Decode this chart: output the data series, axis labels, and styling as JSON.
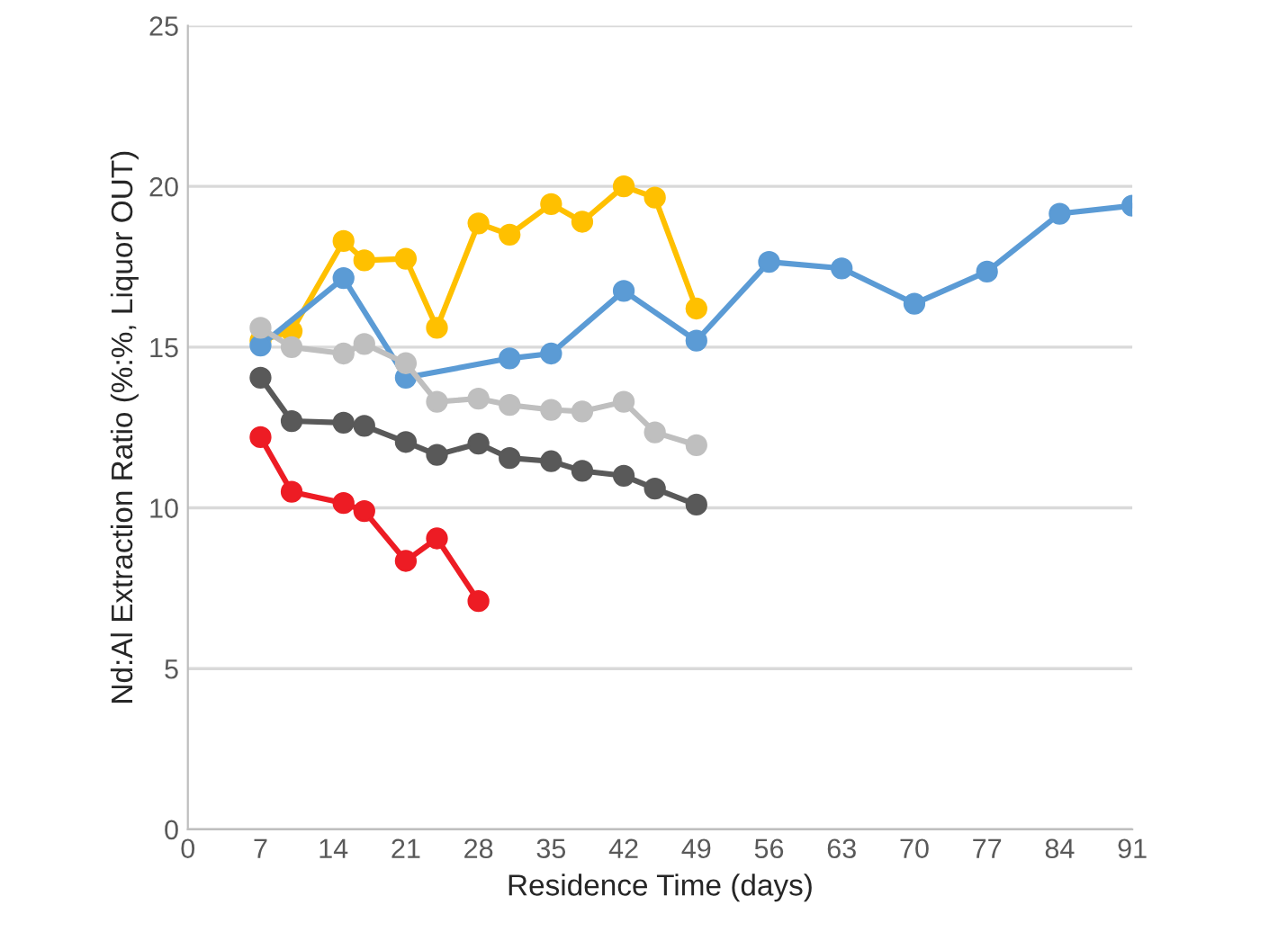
{
  "chart_data": {
    "type": "line",
    "xlabel": "Residence Time (days)",
    "ylabel": "Nd:Al Extraction Ratio (%:%, Liquor OUT)",
    "xlim": [
      0,
      91
    ],
    "xticks": [
      0,
      7,
      14,
      21,
      28,
      35,
      42,
      49,
      56,
      63,
      70,
      77,
      84,
      91
    ],
    "ylim": [
      0,
      25
    ],
    "yticks": [
      0,
      5,
      10,
      15,
      20,
      25
    ],
    "grid": "y",
    "marker": "circle",
    "line_style": "solid",
    "legend": false,
    "series": [
      {
        "color": "#ffc000",
        "x": [
          7,
          10,
          15,
          17,
          21,
          24,
          28,
          31,
          35,
          38,
          42,
          45,
          49
        ],
        "values": [
          15.2,
          15.5,
          18.3,
          17.7,
          17.75,
          15.6,
          18.85,
          18.5,
          19.45,
          18.9,
          20.0,
          19.65,
          16.2
        ]
      },
      {
        "color": "#5b9bd5",
        "x": [
          7,
          15,
          21,
          31,
          35,
          42,
          49,
          56,
          63,
          70,
          77,
          84,
          91
        ],
        "values": [
          15.05,
          17.15,
          14.05,
          14.65,
          14.8,
          16.75,
          15.2,
          17.65,
          17.45,
          16.35,
          17.35,
          19.15,
          19.4
        ]
      },
      {
        "color": "#bfbfbf",
        "x": [
          7,
          10,
          15,
          17,
          21,
          24,
          28,
          31,
          35,
          38,
          42,
          45,
          49
        ],
        "values": [
          15.6,
          15.0,
          14.8,
          15.1,
          14.5,
          13.3,
          13.4,
          13.2,
          13.05,
          13.0,
          13.3,
          12.35,
          11.95
        ]
      },
      {
        "color": "#595959",
        "x": [
          7,
          10,
          15,
          17,
          21,
          24,
          28,
          31,
          35,
          38,
          42,
          45,
          49
        ],
        "values": [
          14.05,
          12.7,
          12.65,
          12.55,
          12.05,
          11.65,
          12.0,
          11.55,
          11.45,
          11.15,
          11.0,
          10.6,
          10.1
        ]
      },
      {
        "color": "#ed1c24",
        "x": [
          7,
          10,
          15,
          17,
          21,
          24,
          28
        ],
        "values": [
          12.2,
          10.5,
          10.15,
          9.9,
          8.35,
          9.05,
          7.1
        ]
      }
    ]
  }
}
